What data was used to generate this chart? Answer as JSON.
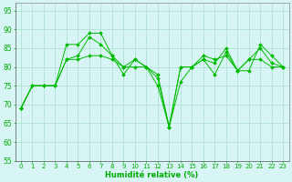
{
  "x": [
    0,
    1,
    2,
    3,
    4,
    5,
    6,
    7,
    8,
    9,
    10,
    11,
    12,
    13,
    14,
    15,
    16,
    17,
    18,
    19,
    20,
    21,
    22,
    23
  ],
  "line1": [
    69,
    75,
    75,
    75,
    86,
    86,
    89,
    89,
    83,
    80,
    80,
    80,
    77,
    64,
    76,
    80,
    82,
    78,
    84,
    79,
    79,
    86,
    83,
    80
  ],
  "line2": [
    69,
    75,
    75,
    75,
    82,
    83,
    88,
    86,
    83,
    78,
    82,
    80,
    75,
    64,
    80,
    80,
    83,
    82,
    83,
    79,
    82,
    85,
    81,
    80
  ],
  "line3": [
    69,
    75,
    75,
    75,
    82,
    82,
    83,
    83,
    82,
    80,
    82,
    80,
    78,
    64,
    80,
    80,
    82,
    81,
    85,
    79,
    82,
    82,
    80,
    80
  ],
  "bg_color": "#d8f5f5",
  "grid_color": "#aaddcc",
  "line_color": "#00bb00",
  "xlabel": "Humidité relative (%)",
  "xlabel_color": "#00aa00",
  "tick_color": "#00aa00",
  "ylim": [
    55,
    97
  ],
  "xlim": [
    -0.5,
    23.5
  ],
  "yticks": [
    55,
    60,
    65,
    70,
    75,
    80,
    85,
    90,
    95
  ],
  "xticks": [
    0,
    1,
    2,
    3,
    4,
    5,
    6,
    7,
    8,
    9,
    10,
    11,
    12,
    13,
    14,
    15,
    16,
    17,
    18,
    19,
    20,
    21,
    22,
    23
  ]
}
